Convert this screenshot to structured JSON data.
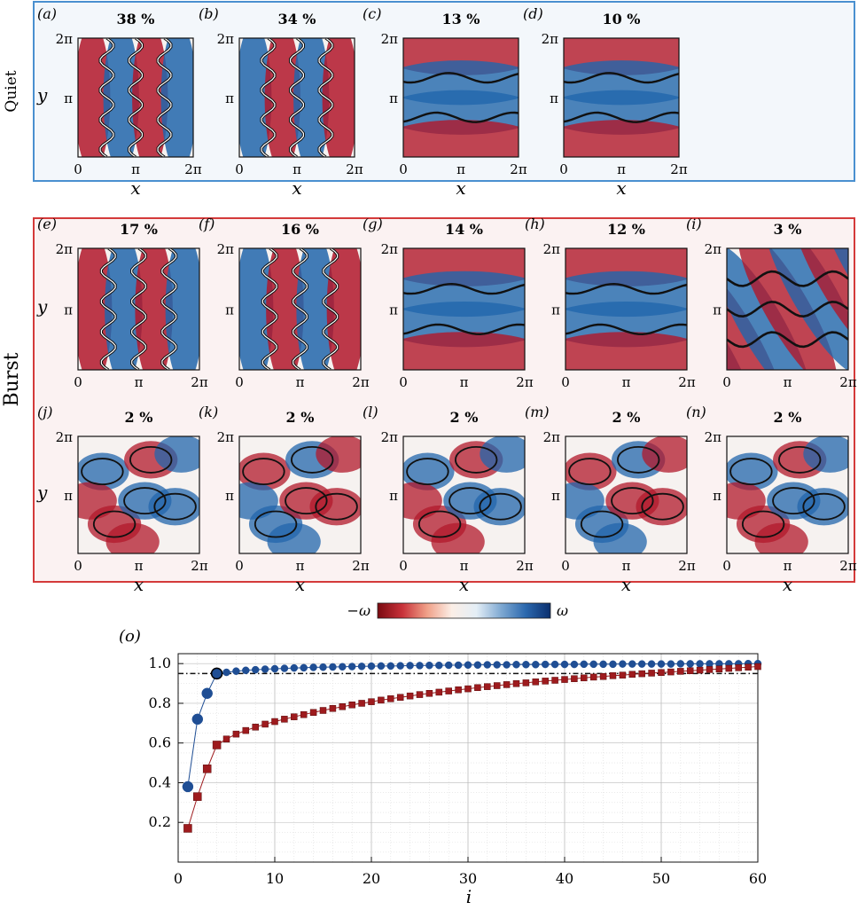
{
  "quiet_group": {
    "label": "Quiet",
    "panels": [
      {
        "letter": "(a)",
        "pct": "38 %",
        "pattern": "vertical"
      },
      {
        "letter": "(b)",
        "pct": "34 %",
        "pattern": "vertical"
      },
      {
        "letter": "(c)",
        "pct": "13 %",
        "pattern": "horizontal"
      },
      {
        "letter": "(d)",
        "pct": "10 %",
        "pattern": "horizontal"
      }
    ]
  },
  "burst_group": {
    "label": "Burst",
    "rows": [
      [
        {
          "letter": "(e)",
          "pct": "17 %",
          "pattern": "vertical"
        },
        {
          "letter": "(f)",
          "pct": "16 %",
          "pattern": "vertical"
        },
        {
          "letter": "(g)",
          "pct": "14 %",
          "pattern": "horizontal"
        },
        {
          "letter": "(h)",
          "pct": "12 %",
          "pattern": "horizontal"
        },
        {
          "letter": "(i)",
          "pct": "3 %",
          "pattern": "diagonal"
        }
      ],
      [
        {
          "letter": "(j)",
          "pct": "2 %",
          "pattern": "mixed"
        },
        {
          "letter": "(k)",
          "pct": "2 %",
          "pattern": "mixed"
        },
        {
          "letter": "(l)",
          "pct": "2 %",
          "pattern": "mixed"
        },
        {
          "letter": "(m)",
          "pct": "2 %",
          "pattern": "mixed"
        },
        {
          "letter": "(n)",
          "pct": "2 %",
          "pattern": "mixed"
        }
      ]
    ]
  },
  "axis_text": {
    "x_label": "x",
    "y_label": "y",
    "x_ticks": [
      "0",
      "π",
      "2π"
    ],
    "y_ticks": [
      "2π",
      "π"
    ]
  },
  "colorbar": {
    "left_label": "−ω",
    "right_label": "ω",
    "colors": [
      "#7a0a10",
      "#c8323a",
      "#f0a088",
      "#fbeee6",
      "#e4eef6",
      "#7fa9d2",
      "#2b68ae",
      "#0a2f6e"
    ]
  },
  "field_colors": {
    "red": "#b2182b",
    "blue": "#2166ac",
    "quiet_frame": "#4a90d0",
    "quiet_bg": "#f3f7fb",
    "burst_frame": "#d43a3a",
    "burst_bg": "#fbf2f2"
  },
  "chart_data": {
    "type": "line",
    "panel_label": "(o)",
    "xlabel": "i",
    "ylabel": "",
    "xlim": [
      0,
      60
    ],
    "ylim": [
      0,
      1.05
    ],
    "x_ticks": [
      0,
      10,
      20,
      30,
      40,
      50,
      60
    ],
    "y_ticks": [
      0.2,
      0.4,
      0.6,
      0.8,
      1.0
    ],
    "grid": true,
    "threshold": 0.95,
    "series": [
      {
        "marker": "circle",
        "color": "#1f4e94",
        "x": [
          1,
          2,
          3,
          4,
          5,
          6,
          7,
          8,
          9,
          10,
          11,
          12,
          13,
          14,
          15,
          16,
          17,
          18,
          19,
          20,
          21,
          22,
          23,
          24,
          25,
          26,
          27,
          28,
          29,
          30,
          31,
          32,
          33,
          34,
          35,
          36,
          37,
          38,
          39,
          40,
          41,
          42,
          43,
          44,
          45,
          46,
          47,
          48,
          49,
          50,
          51,
          52,
          53,
          54,
          55,
          56,
          57,
          58,
          59,
          60
        ],
        "values": [
          0.38,
          0.72,
          0.85,
          0.95,
          0.956,
          0.962,
          0.966,
          0.969,
          0.972,
          0.974,
          0.976,
          0.978,
          0.979,
          0.981,
          0.982,
          0.983,
          0.984,
          0.985,
          0.986,
          0.987,
          0.988,
          0.988,
          0.989,
          0.99,
          0.99,
          0.991,
          0.991,
          0.992,
          0.992,
          0.993,
          0.993,
          0.994,
          0.994,
          0.994,
          0.995,
          0.995,
          0.995,
          0.996,
          0.996,
          0.996,
          0.996,
          0.997,
          0.997,
          0.997,
          0.997,
          0.998,
          0.998,
          0.998,
          0.998,
          0.998,
          0.998,
          0.999,
          0.999,
          0.999,
          0.999,
          0.999,
          0.999,
          0.999,
          1.0,
          1.0
        ]
      },
      {
        "marker": "square",
        "color": "#9e1b1e",
        "x": [
          1,
          2,
          3,
          4,
          5,
          6,
          7,
          8,
          9,
          10,
          11,
          12,
          13,
          14,
          15,
          16,
          17,
          18,
          19,
          20,
          21,
          22,
          23,
          24,
          25,
          26,
          27,
          28,
          29,
          30,
          31,
          32,
          33,
          34,
          35,
          36,
          37,
          38,
          39,
          40,
          41,
          42,
          43,
          44,
          45,
          46,
          47,
          48,
          49,
          50,
          51,
          52,
          53,
          54,
          55,
          56,
          57,
          58,
          59,
          60
        ],
        "values": [
          0.17,
          0.33,
          0.47,
          0.59,
          0.62,
          0.645,
          0.663,
          0.68,
          0.695,
          0.708,
          0.72,
          0.732,
          0.743,
          0.754,
          0.764,
          0.774,
          0.783,
          0.792,
          0.8,
          0.808,
          0.816,
          0.823,
          0.83,
          0.837,
          0.844,
          0.85,
          0.856,
          0.862,
          0.868,
          0.873,
          0.879,
          0.884,
          0.889,
          0.894,
          0.899,
          0.903,
          0.908,
          0.912,
          0.916,
          0.92,
          0.924,
          0.928,
          0.932,
          0.935,
          0.939,
          0.942,
          0.946,
          0.949,
          0.952,
          0.955,
          0.958,
          0.961,
          0.964,
          0.967,
          0.97,
          0.973,
          0.976,
          0.979,
          0.982,
          0.985
        ]
      }
    ]
  }
}
